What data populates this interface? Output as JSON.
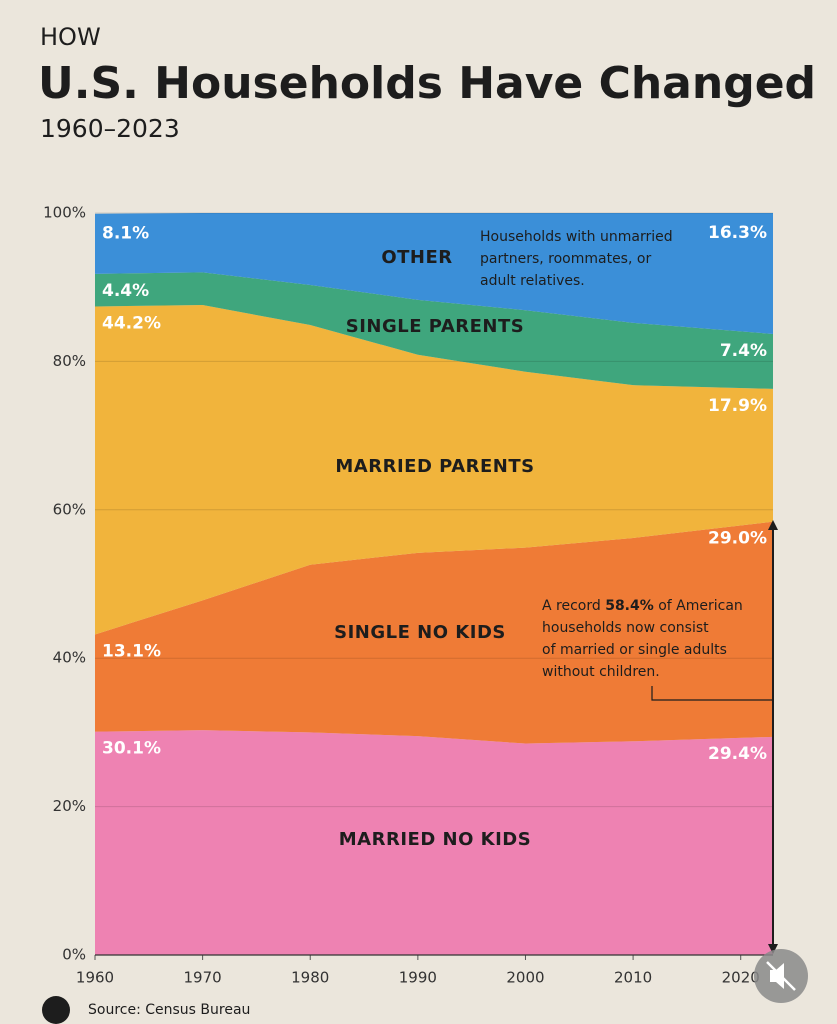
{
  "chart_data": {
    "type": "stacked_area",
    "kicker": "HOW",
    "title": "U.S. Households Have Changed",
    "subtitle": "1960–2023",
    "x": [
      1960,
      1970,
      1980,
      1990,
      2000,
      2010,
      2023
    ],
    "xlim": [
      1960,
      2023
    ],
    "xticks": [
      1960,
      1970,
      1980,
      1990,
      2000,
      2010,
      2020
    ],
    "ylim": [
      0,
      100
    ],
    "yticks": [
      {
        "value": 0,
        "label": "0%"
      },
      {
        "value": 20,
        "label": "20%"
      },
      {
        "value": 40,
        "label": "40%"
      },
      {
        "value": 60,
        "label": "60%"
      },
      {
        "value": 80,
        "label": "80%"
      },
      {
        "value": 100,
        "label": "100%"
      }
    ],
    "grid": true,
    "series": [
      {
        "name": "MARRIED NO KIDS",
        "color": "#ee82b2",
        "values": [
          30.1,
          30.3,
          30.0,
          29.5,
          28.5,
          28.8,
          29.4
        ],
        "value_labels": [
          "30.1%",
          null,
          null,
          null,
          null,
          null,
          "29.4%"
        ]
      },
      {
        "name": "SINGLE NO KIDS",
        "color": "#ef7b36",
        "values": [
          13.1,
          17.5,
          22.6,
          24.7,
          26.4,
          27.4,
          29.0
        ],
        "value_labels": [
          "13.1%",
          null,
          null,
          null,
          null,
          null,
          "29.0%"
        ]
      },
      {
        "name": "MARRIED PARENTS",
        "color": "#f1b43c",
        "values": [
          44.2,
          39.8,
          32.3,
          26.7,
          23.7,
          20.6,
          17.9
        ],
        "value_labels": [
          "44.2%",
          null,
          null,
          null,
          null,
          null,
          "17.9%"
        ]
      },
      {
        "name": "SINGLE PARENTS",
        "color": "#3fa67d",
        "values": [
          4.4,
          4.4,
          5.4,
          7.4,
          8.3,
          8.4,
          7.4
        ],
        "value_labels": [
          "4.4%",
          null,
          null,
          null,
          null,
          null,
          "7.4%"
        ]
      },
      {
        "name": "OTHER",
        "color": "#3b8fd8",
        "values": [
          8.1,
          8.0,
          9.7,
          11.7,
          13.1,
          14.8,
          16.3
        ],
        "value_labels": [
          "8.1%",
          null,
          null,
          null,
          null,
          null,
          "16.3%"
        ]
      }
    ],
    "annotations": [
      {
        "lines": [
          "Households with unmarried",
          "partners, roommates, or",
          "adult relatives."
        ]
      },
      {
        "lines": [
          [
            "A record ",
            "58.4%",
            " of American"
          ],
          "households now consist",
          "of married or single adults",
          "without children."
        ]
      }
    ],
    "source": "Source: Census Bureau"
  }
}
